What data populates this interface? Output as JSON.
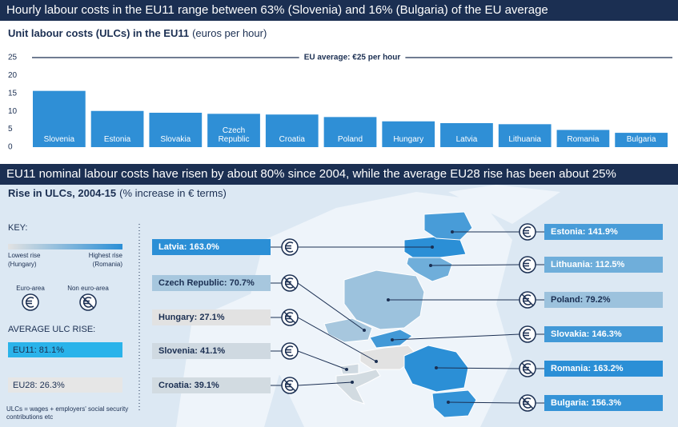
{
  "chart_data": {
    "type": "bar",
    "title": "Hourly labour costs in the EU11 range between 63% (Slovenia) and 16% (Bulgaria) of the EU average",
    "subtitle": "Unit labour costs (ULCs) in the EU11",
    "subtitle_unit": "(euros per hour)",
    "categories": [
      "Slovenia",
      "Estonia",
      "Slovakia",
      "Czech Republic",
      "Croatia",
      "Poland",
      "Hungary",
      "Latvia",
      "Lithuania",
      "Romania",
      "Bulgaria"
    ],
    "values": [
      15.7,
      10.1,
      9.6,
      9.3,
      9.1,
      8.4,
      7.2,
      6.7,
      6.4,
      4.8,
      4.0
    ],
    "color": "#2f8fd6",
    "ylim": [
      0,
      25
    ],
    "yticks": [
      0,
      5,
      10,
      15,
      20,
      25
    ],
    "grid": false,
    "reference": {
      "value": 25,
      "label": "EU average: €25 per hour"
    }
  },
  "map": {
    "title": "EU11 nominal labour costs have risen by about 80% since 2004, while the average EU28 rise has been about 25%",
    "subtitle": "Rise in ULCs, 2004-15",
    "subtitle_unit": "(% increase in € terms)",
    "low_color": "#e2e2e2",
    "high_color": "#2b8fd6",
    "key": {
      "title": "KEY:",
      "low": "Lowest rise",
      "low_country": "(Hungary)",
      "high": "Highest rise",
      "high_country": "(Romania)",
      "euro": "Euro-area",
      "non_euro": "Non euro-area",
      "average_title": "AVERAGE ULC RISE:",
      "note": "ULCs = wages + employers' social security contributions etc"
    },
    "averages": [
      {
        "label": "EU11: 81.1%",
        "value": 81.1,
        "color": "#2ab3ea"
      },
      {
        "label": "EU28: 26.3%",
        "value": 26.3,
        "color": "#e6e6e6"
      }
    ],
    "countries": [
      {
        "label": "Latvia: 163.0%",
        "value": 163.0,
        "euro": true
      },
      {
        "label": "Czech Republic: 70.7%",
        "value": 70.7,
        "euro": false
      },
      {
        "label": "Hungary: 27.1%",
        "value": 27.1,
        "euro": false
      },
      {
        "label": "Slovenia: 41.1%",
        "value": 41.1,
        "euro": true
      },
      {
        "label": "Croatia: 39.1%",
        "value": 39.1,
        "euro": false
      },
      {
        "label": "Estonia: 141.9%",
        "value": 141.9,
        "euro": true
      },
      {
        "label": "Lithuania: 112.5%",
        "value": 112.5,
        "euro": true
      },
      {
        "label": "Poland: 79.2%",
        "value": 79.2,
        "euro": false
      },
      {
        "label": "Slovakia: 146.3%",
        "value": 146.3,
        "euro": true
      },
      {
        "label": "Romania: 163.2%",
        "value": 163.2,
        "euro": false
      },
      {
        "label": "Bulgaria: 156.3%",
        "value": 156.3,
        "euro": false
      }
    ]
  }
}
